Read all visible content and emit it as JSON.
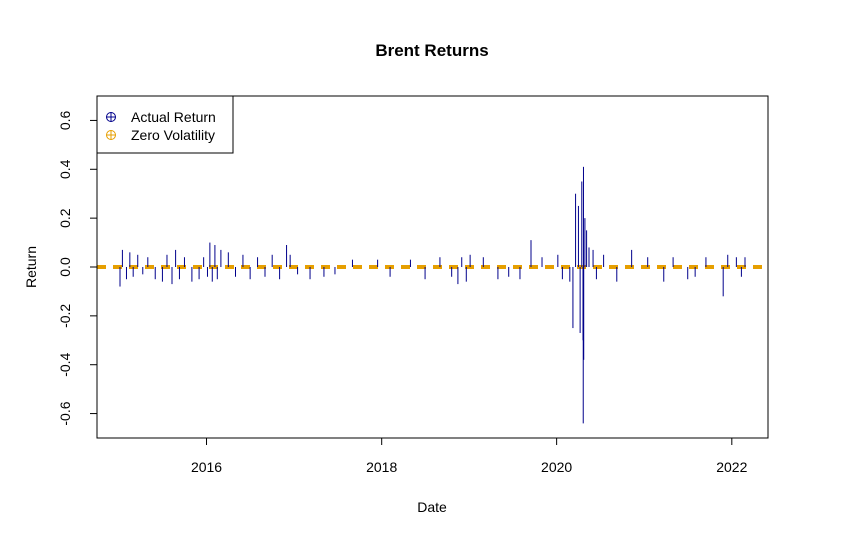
{
  "chart_data": {
    "type": "line",
    "title": "Brent Returns",
    "xlabel": "Date",
    "ylabel": "Return",
    "x_ticks": [
      "2016",
      "2018",
      "2020",
      "2022"
    ],
    "y_ticks": [
      "-0.6",
      "-0.4",
      "-0.2",
      "0.0",
      "0.2",
      "0.4",
      "0.6"
    ],
    "xlim": [
      "2014-10-01",
      "2022-06-01"
    ],
    "ylim": [
      -0.7,
      0.7
    ],
    "grid": false,
    "legend_position": "top-left",
    "series": [
      {
        "name": "Actual Return",
        "color": "#00008b",
        "style": "vertical-lines",
        "x": [
          "2015-01-05",
          "2015-01-15",
          "2015-02-01",
          "2015-02-15",
          "2015-03-01",
          "2015-03-20",
          "2015-04-10",
          "2015-05-01",
          "2015-06-01",
          "2015-07-01",
          "2015-07-20",
          "2015-08-10",
          "2015-08-25",
          "2015-09-10",
          "2015-10-01",
          "2015-11-01",
          "2015-12-01",
          "2015-12-20",
          "2016-01-05",
          "2016-01-15",
          "2016-01-25",
          "2016-02-05",
          "2016-02-15",
          "2016-03-01",
          "2016-04-01",
          "2016-05-01",
          "2016-06-01",
          "2016-07-01",
          "2016-08-01",
          "2016-09-01",
          "2016-10-01",
          "2016-11-01",
          "2016-11-30",
          "2016-12-15",
          "2017-01-15",
          "2017-03-08",
          "2017-05-05",
          "2017-06-20",
          "2017-09-01",
          "2017-12-15",
          "2018-02-05",
          "2018-05-01",
          "2018-07-01",
          "2018-09-01",
          "2018-10-20",
          "2018-11-15",
          "2018-12-01",
          "2018-12-20",
          "2019-01-05",
          "2019-03-01",
          "2019-05-01",
          "2019-06-15",
          "2019-08-01",
          "2019-09-16",
          "2019-11-01",
          "2020-01-06",
          "2020-01-25",
          "2020-02-25",
          "2020-03-09",
          "2020-03-20",
          "2020-04-01",
          "2020-04-08",
          "2020-04-15",
          "2020-04-20",
          "2020-04-21",
          "2020-04-22",
          "2020-04-23",
          "2020-04-28",
          "2020-05-05",
          "2020-05-15",
          "2020-06-01",
          "2020-06-15",
          "2020-07-15",
          "2020-09-08",
          "2020-11-09",
          "2021-01-15",
          "2021-03-23",
          "2021-05-01",
          "2021-07-01",
          "2021-08-01",
          "2021-09-15",
          "2021-11-26",
          "2021-12-15",
          "2022-01-20",
          "2022-02-10",
          "2022-02-25"
        ],
        "y": [
          -0.08,
          0.07,
          -0.05,
          0.06,
          -0.04,
          0.05,
          -0.03,
          0.04,
          -0.05,
          -0.06,
          0.05,
          -0.07,
          0.07,
          -0.05,
          0.04,
          -0.06,
          -0.05,
          0.04,
          -0.04,
          0.1,
          -0.06,
          0.09,
          -0.05,
          0.07,
          0.06,
          -0.04,
          0.05,
          -0.05,
          0.04,
          -0.04,
          0.05,
          -0.05,
          0.09,
          0.05,
          -0.03,
          -0.05,
          -0.04,
          -0.03,
          0.03,
          0.03,
          -0.04,
          0.03,
          -0.05,
          0.04,
          -0.04,
          -0.07,
          0.04,
          -0.06,
          0.05,
          0.04,
          -0.05,
          -0.04,
          -0.05,
          0.11,
          0.04,
          0.05,
          -0.05,
          -0.06,
          -0.25,
          0.3,
          0.25,
          -0.27,
          0.35,
          -0.3,
          -0.64,
          0.41,
          -0.38,
          0.2,
          0.15,
          0.08,
          0.07,
          -0.05,
          0.05,
          -0.06,
          0.07,
          0.04,
          -0.06,
          0.04,
          -0.05,
          -0.04,
          0.04,
          -0.12,
          0.05,
          0.04,
          -0.04,
          0.04
        ]
      },
      {
        "name": "Zero Volatility",
        "color": "#e69f00",
        "style": "dashed-line",
        "x": [
          "2014-10-01",
          "2022-06-01"
        ],
        "y": [
          0.0,
          0.0
        ]
      }
    ]
  }
}
